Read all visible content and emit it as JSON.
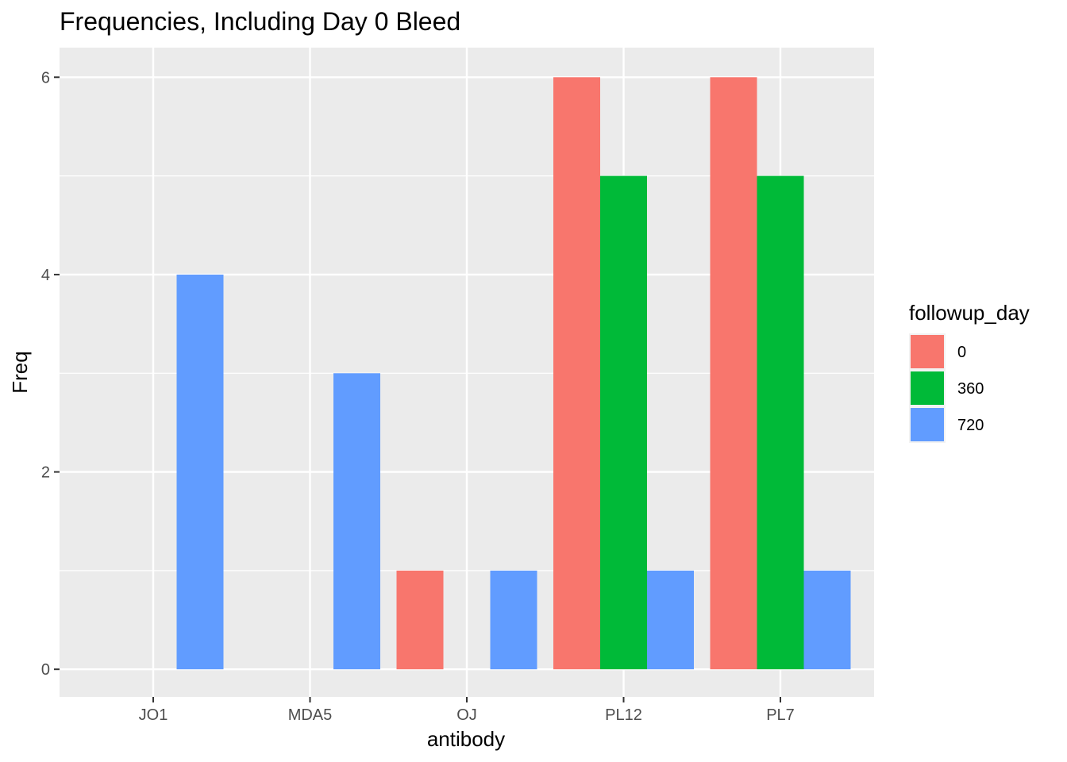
{
  "chart_data": {
    "type": "bar",
    "title": "Frequencies, Including Day 0 Bleed",
    "xlabel": "antibody",
    "ylabel": "Freq",
    "categories": [
      "JO1",
      "MDA5",
      "OJ",
      "PL12",
      "PL7"
    ],
    "ylim": [
      -0.28,
      6.3
    ],
    "yticks": [
      0,
      2,
      4,
      6
    ],
    "legend": {
      "title": "followup_day",
      "position": "right"
    },
    "bars": [
      {
        "category": "JO1",
        "group": "720",
        "value": 4
      },
      {
        "category": "MDA5",
        "group": "720",
        "value": 3
      },
      {
        "category": "OJ",
        "group": "0",
        "value": 1
      },
      {
        "category": "OJ",
        "group": "720",
        "value": 1
      },
      {
        "category": "PL12",
        "group": "0",
        "value": 6
      },
      {
        "category": "PL12",
        "group": "360",
        "value": 5
      },
      {
        "category": "PL12",
        "group": "720",
        "value": 1
      },
      {
        "category": "PL7",
        "group": "0",
        "value": 6
      },
      {
        "category": "PL7",
        "group": "360",
        "value": 5
      },
      {
        "category": "PL7",
        "group": "720",
        "value": 1
      }
    ],
    "series": [
      {
        "name": "0",
        "color": "#F8766D"
      },
      {
        "name": "360",
        "color": "#00BA38"
      },
      {
        "name": "720",
        "color": "#619CFF"
      }
    ],
    "panel_background": "#EBEBEB",
    "grid": true
  }
}
